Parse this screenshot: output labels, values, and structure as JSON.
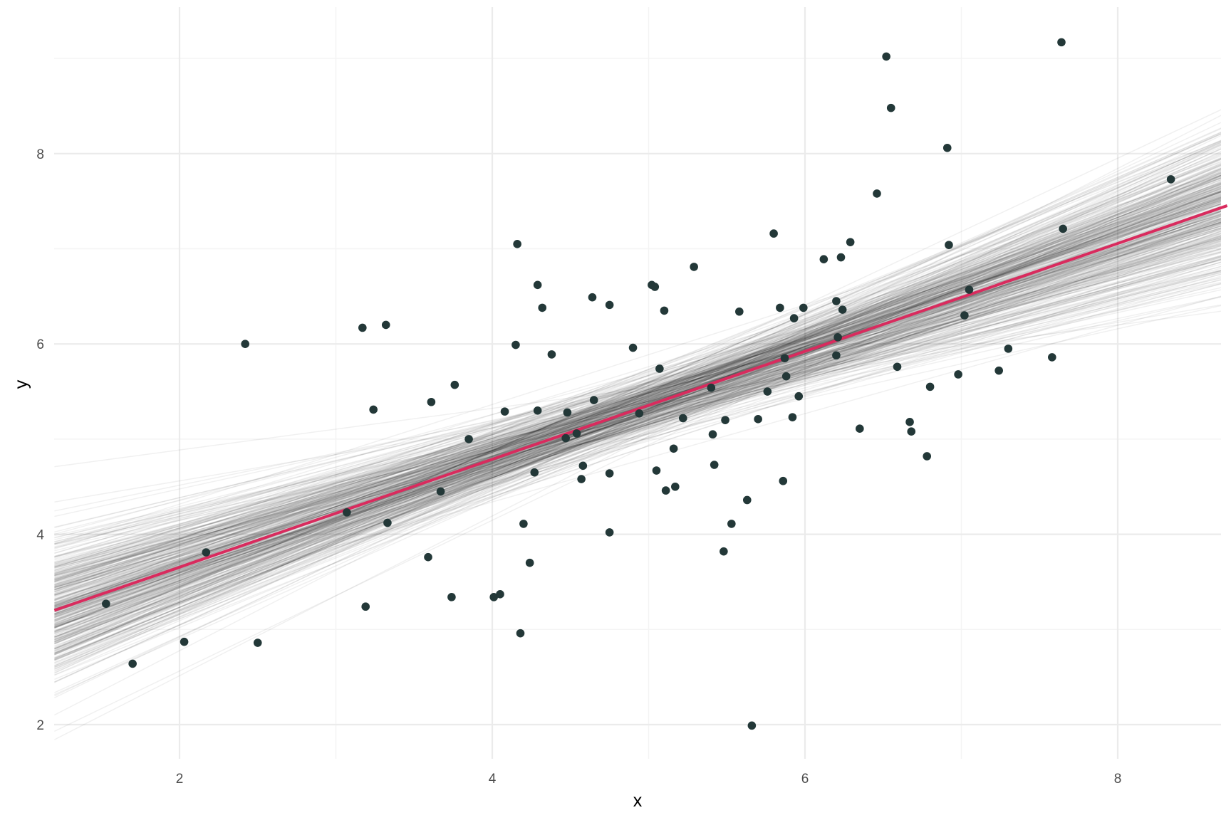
{
  "chart_data": {
    "type": "scatter",
    "title": "",
    "xlabel": "x",
    "ylabel": "y",
    "xlim": [
      1.2,
      8.7
    ],
    "ylim": [
      1.6,
      9.6
    ],
    "x_ticks": [
      2,
      4,
      6,
      8
    ],
    "y_ticks": [
      2,
      4,
      6,
      8
    ],
    "grid": true,
    "colors": {
      "points": "#233838",
      "fit_line": "#d92b5e",
      "posterior_lines": "#000000",
      "grid_major": "#ebebeb",
      "grid_minor": "#f4f4f4"
    },
    "fit_line": {
      "intercept": 2.52,
      "slope": 0.567
    },
    "posterior_band": {
      "intercept_sd": 0.52,
      "slope_sd": 0.1,
      "x_center": 5.0,
      "n_draws": 400
    },
    "points": [
      {
        "x": 1.53,
        "y": 3.27
      },
      {
        "x": 1.7,
        "y": 2.64
      },
      {
        "x": 2.03,
        "y": 2.87
      },
      {
        "x": 2.17,
        "y": 3.81
      },
      {
        "x": 2.42,
        "y": 6.0
      },
      {
        "x": 2.5,
        "y": 2.86
      },
      {
        "x": 3.07,
        "y": 4.23
      },
      {
        "x": 3.17,
        "y": 6.17
      },
      {
        "x": 3.19,
        "y": 3.24
      },
      {
        "x": 3.24,
        "y": 5.31
      },
      {
        "x": 3.32,
        "y": 6.2
      },
      {
        "x": 3.33,
        "y": 4.12
      },
      {
        "x": 3.59,
        "y": 3.76
      },
      {
        "x": 3.61,
        "y": 5.39
      },
      {
        "x": 3.67,
        "y": 4.45
      },
      {
        "x": 3.74,
        "y": 3.34
      },
      {
        "x": 3.76,
        "y": 5.57
      },
      {
        "x": 3.85,
        "y": 5.0
      },
      {
        "x": 4.01,
        "y": 3.34
      },
      {
        "x": 4.05,
        "y": 3.37
      },
      {
        "x": 4.08,
        "y": 5.29
      },
      {
        "x": 4.15,
        "y": 5.99
      },
      {
        "x": 4.16,
        "y": 7.05
      },
      {
        "x": 4.18,
        "y": 2.96
      },
      {
        "x": 4.2,
        "y": 4.11
      },
      {
        "x": 4.24,
        "y": 3.7
      },
      {
        "x": 4.27,
        "y": 4.65
      },
      {
        "x": 4.29,
        "y": 6.62
      },
      {
        "x": 4.29,
        "y": 5.3
      },
      {
        "x": 4.32,
        "y": 6.38
      },
      {
        "x": 4.38,
        "y": 5.89
      },
      {
        "x": 4.47,
        "y": 5.01
      },
      {
        "x": 4.48,
        "y": 5.28
      },
      {
        "x": 4.54,
        "y": 5.06
      },
      {
        "x": 4.57,
        "y": 4.58
      },
      {
        "x": 4.58,
        "y": 4.72
      },
      {
        "x": 4.64,
        "y": 6.49
      },
      {
        "x": 4.65,
        "y": 5.41
      },
      {
        "x": 4.75,
        "y": 6.41
      },
      {
        "x": 4.75,
        "y": 4.64
      },
      {
        "x": 4.75,
        "y": 4.02
      },
      {
        "x": 4.9,
        "y": 5.96
      },
      {
        "x": 4.94,
        "y": 5.27
      },
      {
        "x": 5.02,
        "y": 6.62
      },
      {
        "x": 5.04,
        "y": 6.6
      },
      {
        "x": 5.05,
        "y": 4.67
      },
      {
        "x": 5.07,
        "y": 5.74
      },
      {
        "x": 5.1,
        "y": 6.35
      },
      {
        "x": 5.11,
        "y": 4.46
      },
      {
        "x": 5.16,
        "y": 4.9
      },
      {
        "x": 5.17,
        "y": 4.5
      },
      {
        "x": 5.22,
        "y": 5.22
      },
      {
        "x": 5.29,
        "y": 6.81
      },
      {
        "x": 5.4,
        "y": 5.54
      },
      {
        "x": 5.41,
        "y": 5.05
      },
      {
        "x": 5.42,
        "y": 4.73
      },
      {
        "x": 5.48,
        "y": 3.82
      },
      {
        "x": 5.49,
        "y": 5.2
      },
      {
        "x": 5.53,
        "y": 4.11
      },
      {
        "x": 5.58,
        "y": 6.34
      },
      {
        "x": 5.63,
        "y": 4.36
      },
      {
        "x": 5.66,
        "y": 1.99
      },
      {
        "x": 5.7,
        "y": 5.21
      },
      {
        "x": 5.76,
        "y": 5.5
      },
      {
        "x": 5.8,
        "y": 7.16
      },
      {
        "x": 5.84,
        "y": 6.38
      },
      {
        "x": 5.86,
        "y": 4.56
      },
      {
        "x": 5.87,
        "y": 5.85
      },
      {
        "x": 5.88,
        "y": 5.66
      },
      {
        "x": 5.92,
        "y": 5.23
      },
      {
        "x": 5.93,
        "y": 6.27
      },
      {
        "x": 5.96,
        "y": 5.45
      },
      {
        "x": 5.99,
        "y": 6.38
      },
      {
        "x": 6.12,
        "y": 6.89
      },
      {
        "x": 6.2,
        "y": 6.45
      },
      {
        "x": 6.2,
        "y": 5.88
      },
      {
        "x": 6.21,
        "y": 6.07
      },
      {
        "x": 6.23,
        "y": 6.91
      },
      {
        "x": 6.24,
        "y": 6.36
      },
      {
        "x": 6.29,
        "y": 7.07
      },
      {
        "x": 6.35,
        "y": 5.11
      },
      {
        "x": 6.46,
        "y": 7.58
      },
      {
        "x": 6.52,
        "y": 9.02
      },
      {
        "x": 6.55,
        "y": 8.48
      },
      {
        "x": 6.59,
        "y": 5.76
      },
      {
        "x": 6.67,
        "y": 5.18
      },
      {
        "x": 6.68,
        "y": 5.08
      },
      {
        "x": 6.78,
        "y": 4.82
      },
      {
        "x": 6.8,
        "y": 5.55
      },
      {
        "x": 6.91,
        "y": 8.06
      },
      {
        "x": 6.92,
        "y": 7.04
      },
      {
        "x": 6.98,
        "y": 5.68
      },
      {
        "x": 7.02,
        "y": 6.3
      },
      {
        "x": 7.05,
        "y": 6.57
      },
      {
        "x": 7.24,
        "y": 5.72
      },
      {
        "x": 7.3,
        "y": 5.95
      },
      {
        "x": 7.58,
        "y": 5.86
      },
      {
        "x": 7.64,
        "y": 9.17
      },
      {
        "x": 7.65,
        "y": 7.21
      },
      {
        "x": 8.34,
        "y": 7.73
      }
    ]
  }
}
